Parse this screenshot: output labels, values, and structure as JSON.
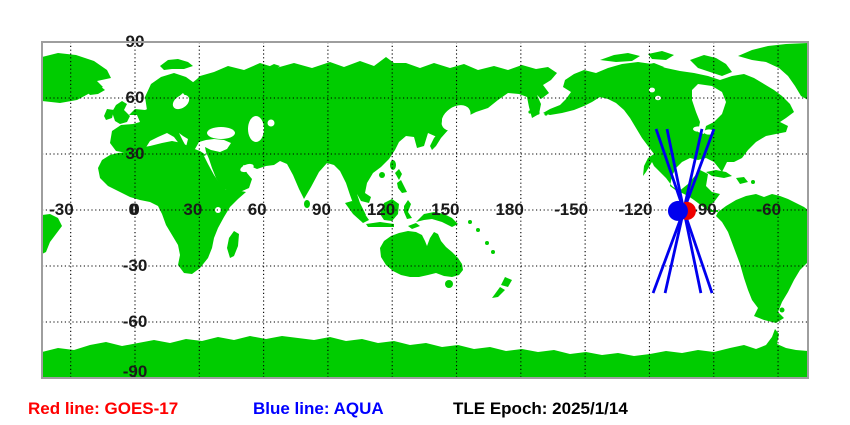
{
  "page": {
    "background": "#ffffff"
  },
  "map": {
    "frame_color": "#9e9e9e",
    "land_color": "#00cc00",
    "sea_color": "#ffffff",
    "grid_color": "#000000",
    "tick_color": "#1a1a1a",
    "lon_ticks": [
      {
        "label": "-30",
        "value": -30
      },
      {
        "label": "0",
        "value": 0
      },
      {
        "label": "30",
        "value": 30
      },
      {
        "label": "60",
        "value": 60
      },
      {
        "label": "90",
        "value": 90
      },
      {
        "label": "120",
        "value": 120
      },
      {
        "label": "150",
        "value": 150
      },
      {
        "label": "180",
        "value": 180
      },
      {
        "label": "-150",
        "value": -150
      },
      {
        "label": "-120",
        "value": -120
      },
      {
        "label": "-90",
        "value": -90
      },
      {
        "label": "-60",
        "value": -60
      }
    ],
    "lat_ticks": [
      {
        "label": "90",
        "value": 90
      },
      {
        "label": "60",
        "value": 60
      },
      {
        "label": "30",
        "value": 30
      },
      {
        "label": "0",
        "value": 0
      },
      {
        "label": "-30",
        "value": -30
      },
      {
        "label": "-60",
        "value": -60
      },
      {
        "label": "-90",
        "value": -90
      }
    ]
  },
  "satellites": {
    "goes17": {
      "name": "GOES-17",
      "color": "#ee0000",
      "marker": {
        "lon": -102.5,
        "lat": -0.5,
        "radius": 9
      }
    },
    "aqua": {
      "name": "AQUA",
      "color": "#0000ee",
      "marker": {
        "lon": -106.7,
        "lat": -0.5,
        "radius": 10
      },
      "tracks": [
        [
          [
            -116.9,
            43.4
          ],
          [
            -90.8,
            -44.5
          ]
        ],
        [
          [
            -111.8,
            43.4
          ],
          [
            -96.0,
            -44.5
          ]
        ],
        [
          [
            -95.5,
            43.4
          ],
          [
            -112.7,
            -44.5
          ]
        ],
        [
          [
            -89.9,
            43.4
          ],
          [
            -118.3,
            -44.5
          ]
        ]
      ]
    }
  },
  "legend": {
    "red_label": "Red line: GOES-17",
    "red_color": "#ff0000",
    "blue_label": "Blue line: AQUA",
    "blue_color": "#0000ff",
    "epoch_label": "TLE Epoch: 2025/1/14",
    "epoch_color": "#000000"
  }
}
